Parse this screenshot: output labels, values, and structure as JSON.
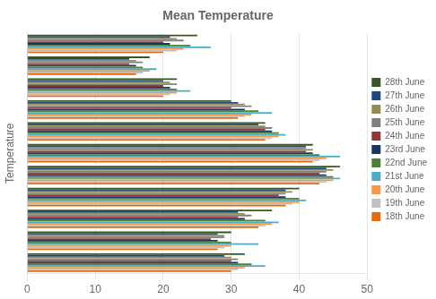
{
  "chart_data": {
    "type": "bar",
    "orientation": "horizontal",
    "title": "Mean Temperature",
    "ylabel": "Temperature",
    "categories": [
      null,
      null,
      null,
      null,
      null,
      null,
      null,
      null,
      null,
      null,
      null
    ],
    "series": [
      {
        "name": "28th June",
        "color": "#375623",
        "values": [
          25,
          18,
          22,
          30,
          35,
          42,
          46,
          40,
          36,
          30,
          32
        ]
      },
      {
        "name": "27th June",
        "color": "#1F497D",
        "values": [
          21,
          15,
          20,
          31,
          34,
          41,
          44,
          38,
          31,
          28,
          29
        ]
      },
      {
        "name": "26th June",
        "color": "#948A54",
        "values": [
          22,
          16,
          21,
          32,
          35,
          41,
          45,
          39,
          32,
          29,
          30
        ]
      },
      {
        "name": "25th June",
        "color": "#808080",
        "values": [
          23,
          17,
          22,
          33,
          36,
          42,
          44,
          38,
          33,
          29,
          31
        ]
      },
      {
        "name": "24th June",
        "color": "#943634",
        "values": [
          20,
          15,
          20,
          30,
          35,
          41,
          43,
          37,
          31,
          27,
          30
        ]
      },
      {
        "name": "23rd June",
        "color": "#17375E",
        "values": [
          21,
          16,
          21,
          32,
          36,
          42,
          44,
          38,
          32,
          28,
          31
        ]
      },
      {
        "name": "22nd June",
        "color": "#4F8139",
        "values": [
          24,
          17,
          22,
          34,
          37,
          43,
          45,
          40,
          35,
          30,
          33
        ]
      },
      {
        "name": "21st June",
        "color": "#4BACC6",
        "values": [
          27,
          19,
          24,
          36,
          38,
          46,
          46,
          41,
          37,
          34,
          35
        ]
      },
      {
        "name": "20th June",
        "color": "#F79646",
        "values": [
          23,
          18,
          22,
          33,
          37,
          44,
          45,
          40,
          36,
          30,
          32
        ]
      },
      {
        "name": "19th June",
        "color": "#C0C0C0",
        "values": [
          22,
          17,
          21,
          32,
          36,
          43,
          44,
          39,
          35,
          29,
          31
        ]
      },
      {
        "name": "18th June",
        "color": "#E36C09",
        "values": [
          20,
          16,
          20,
          31,
          35,
          42,
          43,
          38,
          34,
          28,
          30
        ]
      }
    ],
    "xlim": [
      0,
      50
    ],
    "xticks": [
      0,
      10,
      20,
      30,
      40,
      50
    ],
    "grid": true,
    "legend": "right",
    "tick_labels": "x"
  }
}
